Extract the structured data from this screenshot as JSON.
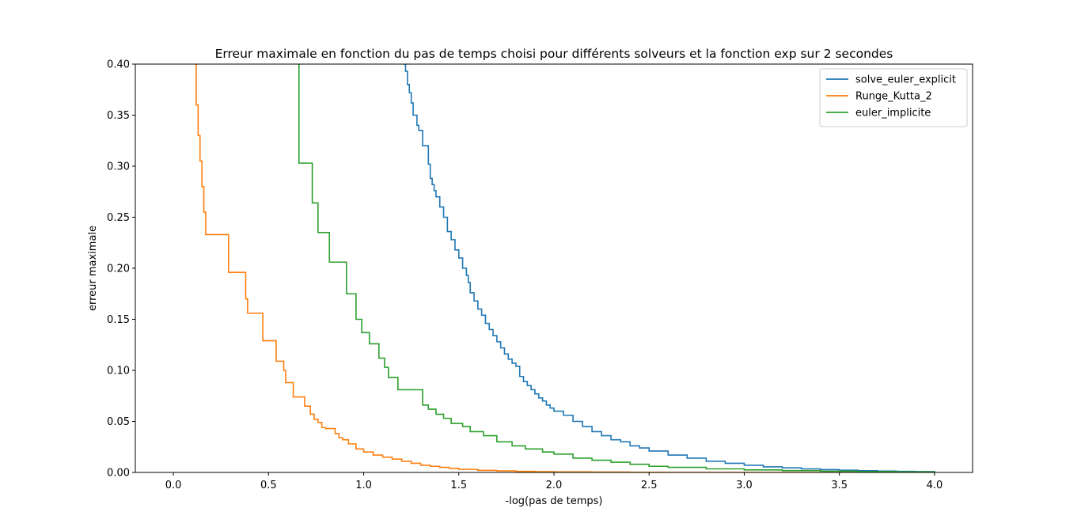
{
  "chart_data": {
    "type": "line",
    "title": "Erreur maximale en fonction du pas de temps choisi pour différents solveurs et la fonction exp sur 2 secondes",
    "xlabel": "-log(pas de temps)",
    "ylabel": "erreur maximale",
    "xlim": [
      -0.2,
      4.2
    ],
    "ylim": [
      0.0,
      0.4
    ],
    "x_ticks": [
      0.0,
      0.5,
      1.0,
      1.5,
      2.0,
      2.5,
      3.0,
      3.5,
      4.0
    ],
    "x_tick_labels": [
      "0.0",
      "0.5",
      "1.0",
      "1.5",
      "2.0",
      "2.5",
      "3.0",
      "3.5",
      "4.0"
    ],
    "y_ticks": [
      0.0,
      0.05,
      0.1,
      0.15,
      0.2,
      0.25,
      0.3,
      0.35,
      0.4
    ],
    "y_tick_labels": [
      "0.00",
      "0.05",
      "0.10",
      "0.15",
      "0.20",
      "0.25",
      "0.30",
      "0.35",
      "0.40"
    ],
    "grid": false,
    "legend_position": "top-right",
    "line_style": "step",
    "series": [
      {
        "name": "solve_euler_explicit",
        "color": "#1f77b4",
        "x": [
          1.21,
          1.22,
          1.23,
          1.24,
          1.25,
          1.26,
          1.28,
          1.29,
          1.31,
          1.34,
          1.35,
          1.36,
          1.37,
          1.38,
          1.4,
          1.42,
          1.44,
          1.46,
          1.48,
          1.5,
          1.52,
          1.54,
          1.55,
          1.56,
          1.58,
          1.6,
          1.62,
          1.64,
          1.66,
          1.68,
          1.7,
          1.72,
          1.74,
          1.76,
          1.78,
          1.8,
          1.82,
          1.84,
          1.86,
          1.88,
          1.9,
          1.92,
          1.94,
          1.96,
          1.98,
          2.0,
          2.05,
          2.1,
          2.15,
          2.2,
          2.25,
          2.3,
          2.35,
          2.4,
          2.45,
          2.5,
          2.6,
          2.7,
          2.8,
          2.9,
          3.0,
          3.1,
          3.2,
          3.3,
          3.4,
          3.5,
          3.6,
          3.7,
          3.8,
          3.9,
          4.0
        ],
        "values": [
          0.4,
          0.393,
          0.38,
          0.372,
          0.362,
          0.35,
          0.34,
          0.335,
          0.32,
          0.302,
          0.288,
          0.282,
          0.276,
          0.27,
          0.26,
          0.25,
          0.236,
          0.228,
          0.218,
          0.21,
          0.2,
          0.193,
          0.186,
          0.176,
          0.168,
          0.16,
          0.154,
          0.146,
          0.14,
          0.134,
          0.128,
          0.122,
          0.116,
          0.111,
          0.107,
          0.104,
          0.094,
          0.089,
          0.085,
          0.081,
          0.077,
          0.073,
          0.07,
          0.066,
          0.063,
          0.06,
          0.056,
          0.05,
          0.045,
          0.04,
          0.036,
          0.032,
          0.03,
          0.026,
          0.024,
          0.021,
          0.017,
          0.014,
          0.011,
          0.009,
          0.007,
          0.0055,
          0.0045,
          0.0035,
          0.0028,
          0.0022,
          0.0017,
          0.0013,
          0.001,
          0.0008,
          0.0006
        ]
      },
      {
        "name": "Runge_Kutta_2",
        "color": "#ff7f0e",
        "x": [
          0.11,
          0.12,
          0.13,
          0.14,
          0.15,
          0.16,
          0.17,
          0.28,
          0.29,
          0.37,
          0.38,
          0.39,
          0.46,
          0.47,
          0.52,
          0.54,
          0.57,
          0.58,
          0.59,
          0.63,
          0.66,
          0.69,
          0.72,
          0.74,
          0.76,
          0.78,
          0.8,
          0.85,
          0.87,
          0.89,
          0.92,
          0.96,
          1.0,
          1.05,
          1.1,
          1.15,
          1.2,
          1.25,
          1.3,
          1.35,
          1.4,
          1.45,
          1.5,
          1.6,
          1.7,
          1.8,
          1.9,
          2.0,
          2.2,
          2.4,
          2.6,
          2.8,
          3.0,
          3.5,
          4.0
        ],
        "values": [
          0.4,
          0.36,
          0.33,
          0.305,
          0.28,
          0.255,
          0.233,
          0.233,
          0.196,
          0.196,
          0.17,
          0.156,
          0.156,
          0.129,
          0.129,
          0.109,
          0.109,
          0.1,
          0.088,
          0.074,
          0.074,
          0.065,
          0.057,
          0.052,
          0.049,
          0.044,
          0.043,
          0.038,
          0.034,
          0.032,
          0.028,
          0.023,
          0.02,
          0.017,
          0.015,
          0.013,
          0.011,
          0.009,
          0.007,
          0.006,
          0.005,
          0.004,
          0.003,
          0.002,
          0.0015,
          0.001,
          0.0007,
          0.0005,
          0.0003,
          0.0002,
          0.0001,
          0.0001,
          5e-05,
          2e-05,
          1e-05
        ]
      },
      {
        "name": "euler_implicite",
        "color": "#2ca02c",
        "x": [
          0.66,
          0.66,
          0.73,
          0.73,
          0.76,
          0.76,
          0.82,
          0.82,
          0.91,
          0.91,
          0.96,
          0.96,
          0.99,
          0.99,
          1.03,
          1.03,
          1.08,
          1.08,
          1.11,
          1.11,
          1.13,
          1.13,
          1.18,
          1.18,
          1.31,
          1.31,
          1.34,
          1.38,
          1.42,
          1.46,
          1.52,
          1.56,
          1.63,
          1.7,
          1.78,
          1.85,
          1.94,
          2.0,
          2.1,
          2.2,
          2.3,
          2.4,
          2.5,
          2.6,
          2.8,
          3.0,
          3.2,
          3.4,
          3.6,
          3.8,
          4.0
        ],
        "values": [
          0.4,
          0.303,
          0.303,
          0.264,
          0.264,
          0.235,
          0.235,
          0.206,
          0.206,
          0.175,
          0.175,
          0.15,
          0.15,
          0.137,
          0.137,
          0.126,
          0.126,
          0.112,
          0.108,
          0.103,
          0.103,
          0.093,
          0.093,
          0.081,
          0.081,
          0.066,
          0.062,
          0.057,
          0.053,
          0.048,
          0.045,
          0.04,
          0.036,
          0.03,
          0.026,
          0.023,
          0.02,
          0.018,
          0.014,
          0.012,
          0.01,
          0.008,
          0.006,
          0.005,
          0.0035,
          0.0025,
          0.0018,
          0.0012,
          0.0008,
          0.0005,
          0.0003
        ]
      }
    ]
  }
}
